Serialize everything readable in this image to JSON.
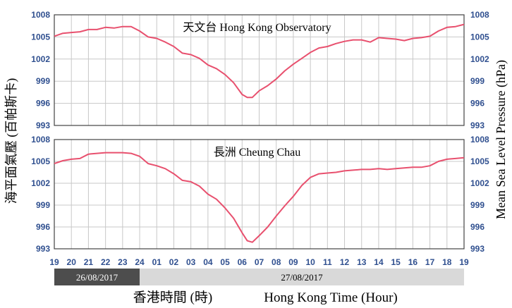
{
  "chart_data": [
    {
      "type": "line",
      "title": "天文台  Hong Kong Observatory",
      "ylim": [
        993,
        1008
      ],
      "yticks": [
        993,
        996,
        999,
        1002,
        1005,
        1008
      ],
      "x": [
        19,
        19.5,
        20,
        20.5,
        21,
        21.5,
        22,
        22.5,
        23,
        23.5,
        24,
        24.5,
        25,
        25.5,
        26,
        26.5,
        27,
        27.5,
        28,
        28.5,
        29,
        29.5,
        30,
        30.3,
        30.6,
        31,
        31.5,
        32,
        32.5,
        33,
        33.5,
        34,
        34.5,
        35,
        35.5,
        36,
        36.5,
        37,
        37.5,
        38,
        38.5,
        39,
        39.5,
        40,
        40.5,
        41,
        41.5,
        42,
        42.5,
        43
      ],
      "series": [
        {
          "color": "#e8506e",
          "values": [
            1005.1,
            1005.5,
            1005.6,
            1005.7,
            1006.0,
            1006.0,
            1006.3,
            1006.2,
            1006.4,
            1006.4,
            1005.8,
            1005.0,
            1004.8,
            1004.3,
            1003.7,
            1002.8,
            1002.6,
            1002.1,
            1001.2,
            1000.7,
            999.9,
            998.8,
            997.2,
            996.8,
            996.8,
            997.7,
            998.4,
            999.3,
            1000.4,
            1001.3,
            1002.1,
            1002.9,
            1003.5,
            1003.7,
            1004.1,
            1004.4,
            1004.6,
            1004.6,
            1004.3,
            1004.9,
            1004.8,
            1004.7,
            1004.5,
            1004.8,
            1004.9,
            1005.1,
            1005.8,
            1006.3,
            1006.4,
            1006.7
          ]
        }
      ]
    },
    {
      "type": "line",
      "title": "長洲  Cheung Chau",
      "ylim": [
        993,
        1008
      ],
      "yticks": [
        993,
        996,
        999,
        1002,
        1005,
        1008
      ],
      "x": [
        19,
        19.5,
        20,
        20.5,
        21,
        21.5,
        22,
        22.5,
        23,
        23.5,
        24,
        24.5,
        25,
        25.5,
        26,
        26.5,
        27,
        27.5,
        28,
        28.5,
        29,
        29.5,
        30,
        30.3,
        30.6,
        31,
        31.5,
        32,
        32.5,
        33,
        33.5,
        34,
        34.5,
        35,
        35.5,
        36,
        36.5,
        37,
        37.5,
        38,
        38.5,
        39,
        39.5,
        40,
        40.5,
        41,
        41.5,
        42,
        42.5,
        43
      ],
      "series": [
        {
          "color": "#e8506e",
          "values": [
            1004.7,
            1005.1,
            1005.3,
            1005.4,
            1006.0,
            1006.1,
            1006.2,
            1006.2,
            1006.2,
            1006.1,
            1005.7,
            1004.7,
            1004.4,
            1004.0,
            1003.3,
            1002.4,
            1002.2,
            1001.6,
            1000.5,
            999.8,
            998.6,
            997.2,
            995.2,
            994.1,
            993.9,
            994.8,
            996.0,
            997.5,
            998.9,
            1000.2,
            1001.7,
            1002.8,
            1003.3,
            1003.4,
            1003.5,
            1003.7,
            1003.8,
            1003.9,
            1003.9,
            1004.0,
            1003.9,
            1004.0,
            1004.1,
            1004.2,
            1004.2,
            1004.4,
            1005.0,
            1005.3,
            1005.4,
            1005.5
          ]
        }
      ]
    }
  ],
  "x_axis": {
    "tick_labels": [
      "19",
      "20",
      "21",
      "22",
      "23",
      "24",
      "01",
      "02",
      "03",
      "04",
      "05",
      "06",
      "07",
      "08",
      "09",
      "10",
      "11",
      "12",
      "13",
      "14",
      "15",
      "16",
      "17",
      "18",
      "19"
    ]
  },
  "date_bar": [
    {
      "label": "26/08/2017",
      "from": 19,
      "to": 24,
      "bg": "#4d4d4d",
      "fg": "#ffffff"
    },
    {
      "label": "27/08/2017",
      "from": 24,
      "to": 43,
      "bg": "#d9d9d9",
      "fg": "#000000"
    }
  ],
  "labels": {
    "ylabel_left": "海平面氣壓 (百帕斯卡)",
    "ylabel_right": "Mean Sea Level Pressure (hPa)",
    "xlabel_left": "香港時間 (時)",
    "xlabel_right": "Hong Kong Time (Hour)"
  },
  "colors": {
    "grid": "#c8c8c8",
    "frame": "#444444",
    "tick_text": "#2f4f8f"
  }
}
